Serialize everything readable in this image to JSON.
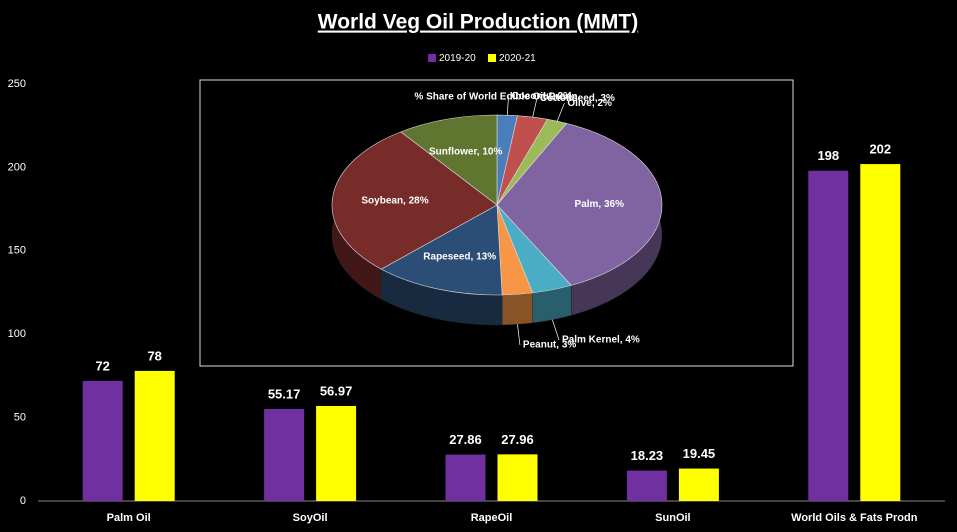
{
  "chart_data": [
    {
      "type": "bar",
      "title": "World Veg Oil Production (MMT)",
      "categories": [
        "Palm Oil",
        "SoyOil",
        "RapeOil",
        "SunOil",
        "World Oils & Fats Prodn"
      ],
      "series": [
        {
          "name": "2019-20",
          "color": "#7030a0",
          "values": [
            72,
            55.17,
            27.86,
            18.23,
            198
          ]
        },
        {
          "name": "2020-21",
          "color": "#ffff00",
          "values": [
            78,
            56.97,
            27.96,
            19.45,
            202
          ]
        }
      ],
      "ylim": [
        0,
        250
      ],
      "yticks": [
        0,
        50,
        100,
        150,
        200,
        250
      ]
    },
    {
      "type": "pie",
      "title": "% Share of World Edible Oil Prodn",
      "values": [
        2,
        3,
        2,
        36,
        4,
        3,
        13,
        28,
        10
      ],
      "value_labels": [
        "Coconut, 2%",
        "Cottonseed, 3%",
        "Olive, 2%",
        "Palm, 36%",
        "Palm Kernel, 4%",
        "Peanut, 3%",
        "Rapeseed, 13%",
        "Soybean, 28%",
        "Sunflower, 10%"
      ],
      "colors": [
        "#4a7ebb",
        "#c0504d",
        "#9bbb59",
        "#8064a2",
        "#4bacc6",
        "#f79646",
        "#2c4d75",
        "#772c2a",
        "#5f7530"
      ]
    }
  ]
}
